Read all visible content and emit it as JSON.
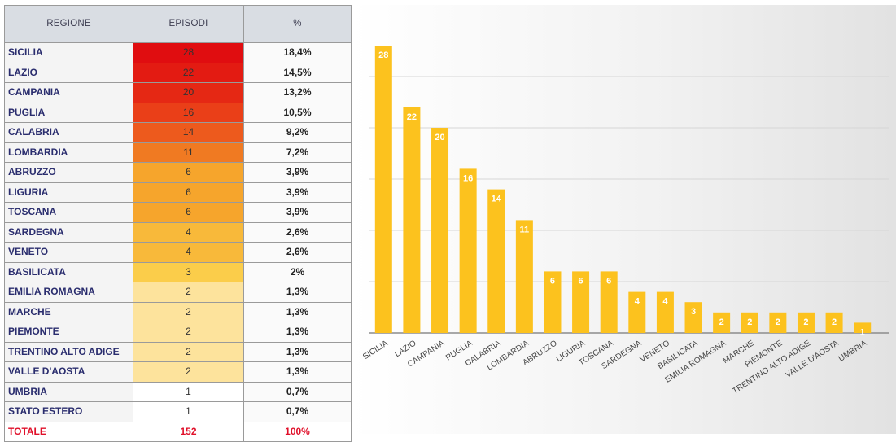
{
  "table": {
    "headers": {
      "region": "REGIONE",
      "episodes": "EPISODI",
      "percent": "%"
    },
    "rows": [
      {
        "region": "SICILIA",
        "episodes": "28",
        "percent": "18,4%",
        "color": "#e00d10"
      },
      {
        "region": "LAZIO",
        "episodes": "22",
        "percent": "14,5%",
        "color": "#e31b12"
      },
      {
        "region": "CAMPANIA",
        "episodes": "20",
        "percent": "13,2%",
        "color": "#e52814"
      },
      {
        "region": "PUGLIA",
        "episodes": "16",
        "percent": "10,5%",
        "color": "#ea3f18"
      },
      {
        "region": "CALABRIA",
        "episodes": "14",
        "percent": "9,2%",
        "color": "#ed5a1d"
      },
      {
        "region": "LOMBARDIA",
        "episodes": "11",
        "percent": "7,2%",
        "color": "#f07a22"
      },
      {
        "region": "ABRUZZO",
        "episodes": "6",
        "percent": "3,9%",
        "color": "#f6a52c"
      },
      {
        "region": "LIGURIA",
        "episodes": "6",
        "percent": "3,9%",
        "color": "#f6a52c"
      },
      {
        "region": "TOSCANA",
        "episodes": "6",
        "percent": "3,9%",
        "color": "#f6a52c"
      },
      {
        "region": "SARDEGNA",
        "episodes": "4",
        "percent": "2,6%",
        "color": "#f8b93a"
      },
      {
        "region": "VENETO",
        "episodes": "4",
        "percent": "2,6%",
        "color": "#f8b93a"
      },
      {
        "region": "BASILICATA",
        "episodes": "3",
        "percent": "2%",
        "color": "#fbcd4a"
      },
      {
        "region": "EMILIA ROMAGNA",
        "episodes": "2",
        "percent": "1,3%",
        "color": "#fde39c"
      },
      {
        "region": "MARCHE",
        "episodes": "2",
        "percent": "1,3%",
        "color": "#fde39c"
      },
      {
        "region": "PIEMONTE",
        "episodes": "2",
        "percent": "1,3%",
        "color": "#fde39c"
      },
      {
        "region": "TRENTINO ALTO ADIGE",
        "episodes": "2",
        "percent": "1,3%",
        "color": "#fde39c"
      },
      {
        "region": "VALLE D'AOSTA",
        "episodes": "2",
        "percent": "1,3%",
        "color": "#fde39c"
      },
      {
        "region": "UMBRIA",
        "episodes": "1",
        "percent": "0,7%",
        "color": "#ffffff"
      },
      {
        "region": "STATO ESTERO",
        "episodes": "1",
        "percent": "0,7%",
        "color": "#ffffff"
      }
    ],
    "total": {
      "label": "TOTALE",
      "episodes": "152",
      "percent": "100%"
    }
  },
  "chart_data": {
    "type": "bar",
    "categories": [
      "SICILIA",
      "LAZIO",
      "CAMPANIA",
      "PUGLIA",
      "CALABRIA",
      "LOMBARDIA",
      "ABRUZZO",
      "LIGURIA",
      "TOSCANA",
      "SARDEGNA",
      "VENETO",
      "BASILICATA",
      "EMILIA ROMAGNA",
      "MARCHE",
      "PIEMONTE",
      "TRENTINO ALTO ADIGE",
      "VALLE D'AOSTA",
      "UMBRIA"
    ],
    "values": [
      28,
      22,
      20,
      16,
      14,
      11,
      6,
      6,
      6,
      4,
      4,
      3,
      2,
      2,
      2,
      2,
      2,
      1
    ],
    "ylim": [
      0,
      30
    ],
    "grid": true,
    "bar_color": "#fcc21e",
    "title": "",
    "xlabel": "",
    "ylabel": ""
  }
}
